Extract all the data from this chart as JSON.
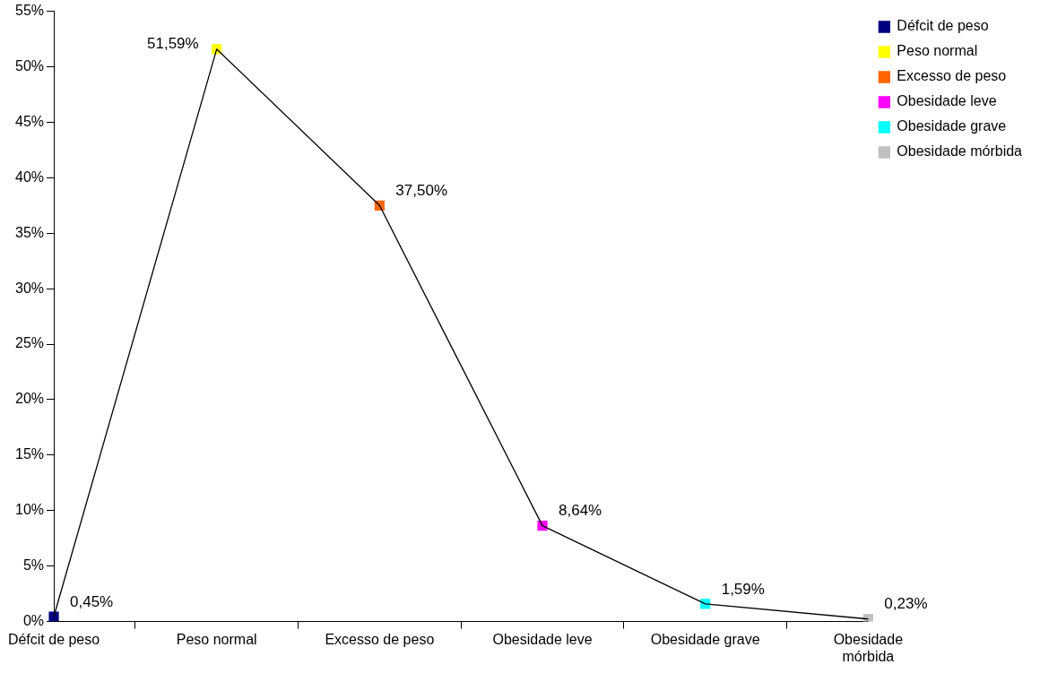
{
  "chart_data": {
    "type": "line",
    "categories": [
      "Défcit de peso",
      "Peso normal",
      "Excesso de peso",
      "Obesidade leve",
      "Obesidade grave",
      "Obesidade mórbida"
    ],
    "series": [
      {
        "color": "#000000",
        "marker": "none",
        "values": [
          0.45,
          51.59,
          37.5,
          8.64,
          1.59,
          0.23
        ]
      },
      {
        "type": "scatter",
        "name": "Défcit de peso",
        "color": "#000080",
        "values": [
          0.45,
          null,
          null,
          null,
          null,
          null
        ],
        "value_labels": [
          "0,45%",
          null,
          null,
          null,
          null,
          null
        ]
      },
      {
        "type": "scatter",
        "name": "Peso normal",
        "color": "#ffff00",
        "values": [
          null,
          51.59,
          null,
          null,
          null,
          null
        ],
        "value_labels": [
          null,
          "51,59%",
          null,
          null,
          null,
          null
        ]
      },
      {
        "type": "scatter",
        "name": "Excesso de peso",
        "color": "#ff6600",
        "values": [
          null,
          null,
          37.5,
          null,
          null,
          null
        ],
        "value_labels": [
          null,
          null,
          "37,50%",
          null,
          null,
          null
        ]
      },
      {
        "type": "scatter",
        "name": "Obesidade leve",
        "color": "#ff00ff",
        "values": [
          null,
          null,
          null,
          8.64,
          null,
          null
        ],
        "value_labels": [
          null,
          null,
          null,
          "8,64%",
          null,
          null
        ]
      },
      {
        "type": "scatter",
        "name": "Obesidade grave",
        "color": "#00ffff",
        "values": [
          null,
          null,
          null,
          null,
          1.59,
          null
        ],
        "value_labels": [
          null,
          null,
          null,
          null,
          "1,59%",
          null
        ]
      },
      {
        "type": "scatter",
        "name": "Obesidade mórbida",
        "color": "#c0c0c0",
        "values": [
          null,
          null,
          null,
          null,
          null,
          0.23
        ],
        "value_labels": [
          null,
          null,
          null,
          null,
          null,
          "0,23%"
        ]
      }
    ],
    "ylim": [
      0,
      55
    ],
    "yticks": [
      {
        "value": 0,
        "label": "0%"
      },
      {
        "value": 5,
        "label": "5%"
      },
      {
        "value": 10,
        "label": "10%"
      },
      {
        "value": 15,
        "label": "15%"
      },
      {
        "value": 20,
        "label": "20%"
      },
      {
        "value": 25,
        "label": "25%"
      },
      {
        "value": 30,
        "label": "30%"
      },
      {
        "value": 35,
        "label": "35%"
      },
      {
        "value": 40,
        "label": "40%"
      },
      {
        "value": 45,
        "label": "45%"
      },
      {
        "value": 50,
        "label": "50%"
      },
      {
        "value": 55,
        "label": "55%"
      }
    ],
    "grid": false,
    "legend": "right",
    "marker": "square",
    "line_style": "solid"
  }
}
